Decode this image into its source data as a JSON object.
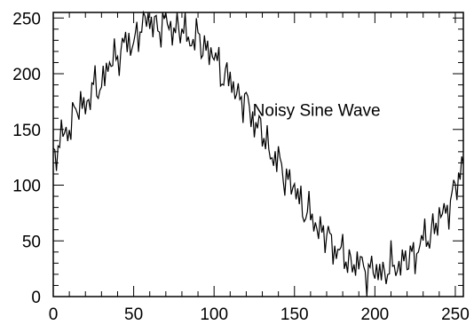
{
  "chart_data": {
    "type": "line",
    "title": "",
    "xlabel": "",
    "ylabel": "",
    "xlim": [
      0,
      255
    ],
    "ylim": [
      0,
      255
    ],
    "x_ticks": [
      0,
      50,
      100,
      150,
      200,
      250
    ],
    "y_ticks": [
      0,
      50,
      100,
      150,
      200,
      250
    ],
    "x_tick_labels": [
      "0",
      "50",
      "100",
      "150",
      "200",
      "250"
    ],
    "y_tick_labels": [
      "0",
      "50",
      "100",
      "150",
      "200",
      "250"
    ],
    "annotation": "Noisy Sine Wave",
    "grid": false,
    "legend": "none",
    "line_color": "#000000",
    "series": [
      {
        "x": [
          0,
          5,
          10,
          15,
          20,
          25,
          30,
          35,
          40,
          45,
          50,
          55,
          60,
          65,
          70,
          75,
          80,
          85,
          90,
          95,
          100,
          105,
          110,
          115,
          120,
          125,
          130,
          135,
          140,
          145,
          150,
          155,
          160,
          165,
          170,
          175,
          180,
          185,
          190,
          195,
          200,
          205,
          210,
          215,
          220,
          225,
          230,
          235,
          240,
          245,
          250,
          255
        ],
        "y": [
          128,
          140,
          152,
          164,
          175,
          186,
          196,
          206,
          215,
          223,
          230,
          236,
          240,
          242,
          243,
          242,
          239,
          235,
          229,
          222,
          213,
          204,
          193,
          182,
          170,
          157,
          145,
          132,
          119,
          107,
          95,
          83,
          72,
          62,
          52,
          44,
          37,
          31,
          26,
          23,
          22,
          22,
          24,
          28,
          33,
          40,
          48,
          57,
          68,
          80,
          92,
          118
        ],
        "noise": [
          -12,
          8,
          -5,
          15,
          -10,
          6,
          -14,
          10,
          -3,
          12,
          -8,
          14,
          16,
          -6,
          11,
          -9,
          7,
          -12,
          9,
          -4,
          10,
          -11,
          6,
          -8,
          12,
          -5,
          9,
          -10,
          7,
          -6,
          8,
          -9,
          5,
          -7,
          10,
          -6,
          8,
          -9,
          12,
          -5,
          7,
          -6,
          9,
          -4,
          6,
          -8,
          10,
          -5,
          8,
          -6,
          9,
          7
        ]
      }
    ]
  }
}
